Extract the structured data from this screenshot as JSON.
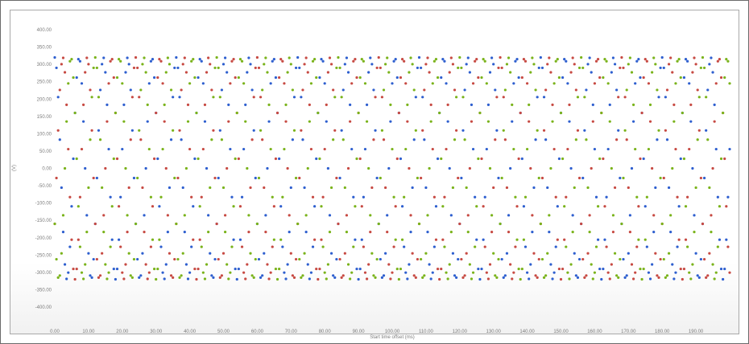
{
  "chart_data": {
    "type": "scatter",
    "title": "",
    "xlabel": "Start time offset (ms)",
    "ylabel": "(V)",
    "xlim": [
      0,
      200
    ],
    "ylim": [
      -420,
      420
    ],
    "grid": false,
    "legend": "none",
    "x_ticks": [
      "0.00",
      "10.00",
      "20.00",
      "30.00",
      "40.00",
      "50.00",
      "60.00",
      "70.00",
      "80.00",
      "90.00",
      "100.00",
      "110.00",
      "120.00",
      "130.00",
      "140.00",
      "150.00",
      "160.00",
      "170.00",
      "180.00",
      "190.00"
    ],
    "y_ticks": [
      "400.00",
      "350.00",
      "300.00",
      "250.00",
      "200.00",
      "150.00",
      "100.00",
      "50.00",
      "0.00",
      "-50.00",
      "-100.00",
      "-150.00",
      "-200.00",
      "-250.00",
      "-300.00",
      "-350.00",
      "-400.00"
    ],
    "sample_interval_ms": 0.5,
    "x_start_ms": 0,
    "x_end_ms": 200,
    "series": [
      {
        "color": "#2e5fcf",
        "waveform": "sine",
        "amplitude": 320,
        "period_ms": 7.2,
        "phase_deg": 90
      },
      {
        "color": "#c74a43",
        "waveform": "sine",
        "amplitude": 320,
        "period_ms": 7.2,
        "phase_deg": -30
      },
      {
        "color": "#7ab31b",
        "waveform": "sine",
        "amplitude": 320,
        "period_ms": 7.2,
        "phase_deg": 210
      }
    ]
  }
}
